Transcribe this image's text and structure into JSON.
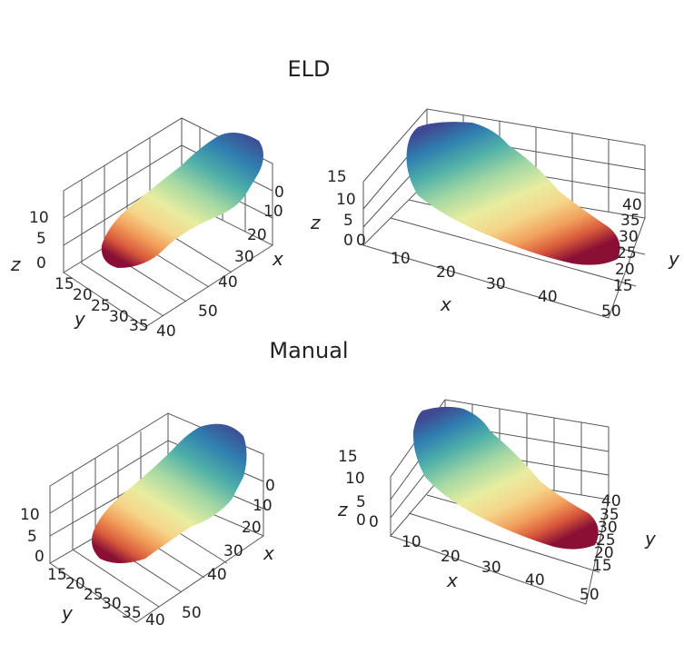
{
  "sections": [
    {
      "title": "ELD",
      "views": [
        {
          "axes": {
            "x_label": "x",
            "y_label": "y",
            "z_label": "z"
          },
          "x_ticks": [
            "0",
            "10",
            "20",
            "30",
            "40",
            "50"
          ],
          "y_ticks": [
            "15",
            "20",
            "25",
            "30",
            "35",
            "40"
          ],
          "z_ticks": [
            "0",
            "5",
            "10"
          ]
        },
        {
          "axes": {
            "x_label": "x",
            "y_label": "y",
            "z_label": "z"
          },
          "x_ticks": [
            "0",
            "10",
            "20",
            "30",
            "40",
            "50"
          ],
          "y_ticks": [
            "15",
            "20",
            "25",
            "30",
            "35",
            "40"
          ],
          "z_ticks": [
            "0",
            "5",
            "10",
            "15"
          ]
        }
      ]
    },
    {
      "title": "Manual",
      "views": [
        {
          "axes": {
            "x_label": "x",
            "y_label": "y",
            "z_label": "z"
          },
          "x_ticks": [
            "0",
            "10",
            "20",
            "30",
            "40",
            "50"
          ],
          "y_ticks": [
            "15",
            "20",
            "25",
            "30",
            "35",
            "40"
          ],
          "z_ticks": [
            "0",
            "5",
            "10"
          ]
        },
        {
          "axes": {
            "x_label": "x",
            "y_label": "y",
            "z_label": "z"
          },
          "x_ticks": [
            "0",
            "10",
            "20",
            "30",
            "40",
            "50"
          ],
          "y_ticks": [
            "15",
            "20",
            "25",
            "30",
            "35",
            "40"
          ],
          "z_ticks": [
            "0",
            "5",
            "10",
            "15"
          ]
        }
      ]
    }
  ],
  "colormap": [
    "#3f4a93",
    "#2f7fb0",
    "#4fb0a8",
    "#a5d8a3",
    "#e8eda0",
    "#f5d58a",
    "#f2a05c",
    "#d95a3b",
    "#a61c3c",
    "#8a0f35"
  ]
}
